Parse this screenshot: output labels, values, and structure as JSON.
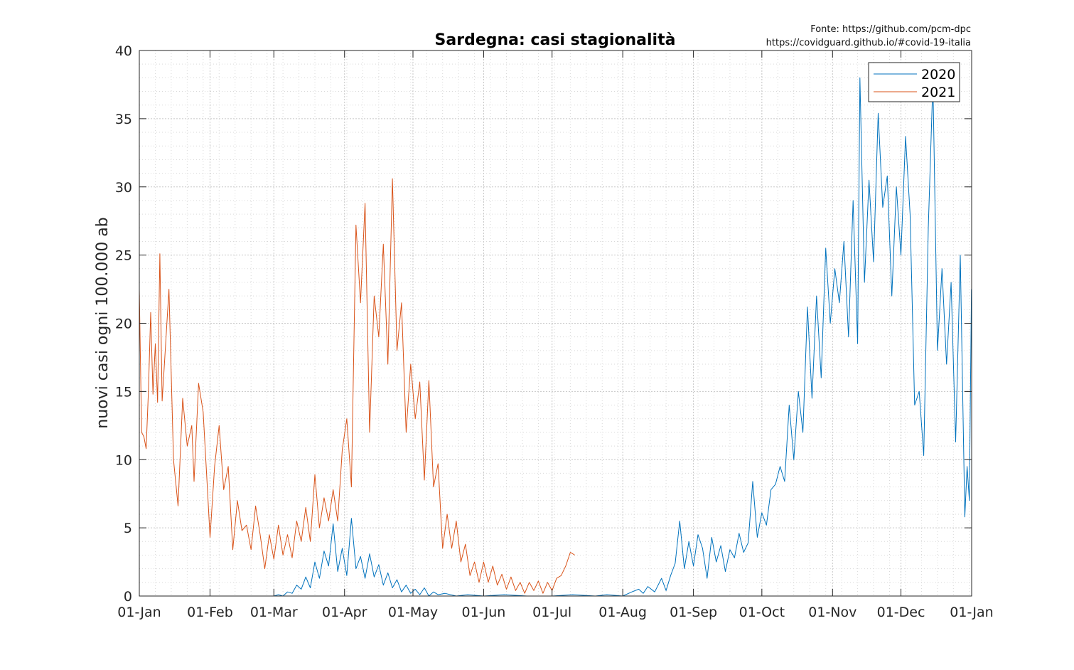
{
  "source": {
    "line1": "Fonte: https://github.com/pcm-dpc",
    "line2": "https://covidguard.github.io/#covid-19-italia"
  },
  "chart_data": {
    "type": "line",
    "title": "Sardegna: casi stagionalità",
    "xlabel": "",
    "ylabel": "nuovi casi ogni 100.000 ab",
    "ylim": [
      0,
      40
    ],
    "yticks": [
      0,
      5,
      10,
      15,
      20,
      25,
      30,
      35,
      40
    ],
    "x_domain": [
      "01-Jan",
      "01-Jan (next year)"
    ],
    "xtick_labels": [
      "01-Jan",
      "01-Feb",
      "01-Mar",
      "01-Apr",
      "01-May",
      "01-Jun",
      "01-Jul",
      "01-Aug",
      "01-Sep",
      "01-Oct",
      "01-Nov",
      "01-Dec",
      "01-Jan"
    ],
    "grid": true,
    "minor_grid": true,
    "legend_position": "top-right",
    "colors": {
      "2020": "#0072BD",
      "2021": "#D95319"
    },
    "series": [
      {
        "name": "2020",
        "color": "#0072BD",
        "x_format": "MM-DD",
        "points": [
          [
            "03-01",
            0
          ],
          [
            "03-03",
            0.1
          ],
          [
            "03-05",
            0
          ],
          [
            "03-07",
            0.3
          ],
          [
            "03-09",
            0.2
          ],
          [
            "03-11",
            0.8
          ],
          [
            "03-13",
            0.5
          ],
          [
            "03-15",
            1.4
          ],
          [
            "03-17",
            0.6
          ],
          [
            "03-19",
            2.5
          ],
          [
            "03-21",
            1.3
          ],
          [
            "03-23",
            3.3
          ],
          [
            "03-25",
            2.2
          ],
          [
            "03-27",
            5.3
          ],
          [
            "03-29",
            1.8
          ],
          [
            "03-31",
            3.5
          ],
          [
            "04-02",
            1.5
          ],
          [
            "04-04",
            5.7
          ],
          [
            "04-06",
            2.0
          ],
          [
            "04-08",
            2.9
          ],
          [
            "04-10",
            1.3
          ],
          [
            "04-12",
            3.1
          ],
          [
            "04-14",
            1.4
          ],
          [
            "04-16",
            2.3
          ],
          [
            "04-18",
            0.8
          ],
          [
            "04-20",
            1.7
          ],
          [
            "04-22",
            0.6
          ],
          [
            "04-24",
            1.2
          ],
          [
            "04-26",
            0.3
          ],
          [
            "04-28",
            0.8
          ],
          [
            "04-30",
            0.2
          ],
          [
            "05-02",
            0.5
          ],
          [
            "05-04",
            0.1
          ],
          [
            "05-06",
            0.6
          ],
          [
            "05-08",
            0
          ],
          [
            "05-10",
            0.3
          ],
          [
            "05-12",
            0.1
          ],
          [
            "05-15",
            0.2
          ],
          [
            "05-20",
            0
          ],
          [
            "05-25",
            0.1
          ],
          [
            "06-01",
            0
          ],
          [
            "06-10",
            0.1
          ],
          [
            "06-20",
            0
          ],
          [
            "07-01",
            0
          ],
          [
            "07-10",
            0.1
          ],
          [
            "07-20",
            0
          ],
          [
            "07-25",
            0.1
          ],
          [
            "08-01",
            0
          ],
          [
            "08-05",
            0.3
          ],
          [
            "08-08",
            0.5
          ],
          [
            "08-10",
            0.2
          ],
          [
            "08-12",
            0.7
          ],
          [
            "08-15",
            0.3
          ],
          [
            "08-18",
            1.3
          ],
          [
            "08-20",
            0.4
          ],
          [
            "08-22",
            1.5
          ],
          [
            "08-24",
            2.4
          ],
          [
            "08-26",
            5.5
          ],
          [
            "08-28",
            2.0
          ],
          [
            "08-30",
            4.0
          ],
          [
            "09-01",
            2.2
          ],
          [
            "09-03",
            4.5
          ],
          [
            "09-05",
            3.5
          ],
          [
            "09-07",
            1.3
          ],
          [
            "09-09",
            4.3
          ],
          [
            "09-11",
            2.5
          ],
          [
            "09-13",
            3.7
          ],
          [
            "09-15",
            1.8
          ],
          [
            "09-17",
            3.4
          ],
          [
            "09-19",
            2.8
          ],
          [
            "09-21",
            4.6
          ],
          [
            "09-23",
            3.2
          ],
          [
            "09-25",
            3.9
          ],
          [
            "09-27",
            8.4
          ],
          [
            "09-29",
            4.3
          ],
          [
            "10-01",
            6.1
          ],
          [
            "10-03",
            5.2
          ],
          [
            "10-05",
            7.8
          ],
          [
            "10-07",
            8.2
          ],
          [
            "10-09",
            9.5
          ],
          [
            "10-11",
            8.4
          ],
          [
            "10-13",
            14.0
          ],
          [
            "10-15",
            10.0
          ],
          [
            "10-17",
            15.0
          ],
          [
            "10-19",
            12.0
          ],
          [
            "10-21",
            21.2
          ],
          [
            "10-23",
            14.5
          ],
          [
            "10-25",
            22.0
          ],
          [
            "10-27",
            16.0
          ],
          [
            "10-29",
            25.5
          ],
          [
            "10-31",
            20.0
          ],
          [
            "11-02",
            24.0
          ],
          [
            "11-04",
            21.5
          ],
          [
            "11-06",
            26.0
          ],
          [
            "11-08",
            19.0
          ],
          [
            "11-10",
            29.0
          ],
          [
            "11-12",
            18.5
          ],
          [
            "11-13",
            38.0
          ],
          [
            "11-15",
            23.0
          ],
          [
            "11-17",
            30.5
          ],
          [
            "11-19",
            24.5
          ],
          [
            "11-21",
            35.4
          ],
          [
            "11-23",
            28.5
          ],
          [
            "11-25",
            30.8
          ],
          [
            "11-27",
            22.0
          ],
          [
            "11-29",
            30.0
          ],
          [
            "12-01",
            25.0
          ],
          [
            "12-03",
            33.7
          ],
          [
            "12-05",
            28.0
          ],
          [
            "12-07",
            14.0
          ],
          [
            "12-09",
            15.0
          ],
          [
            "12-11",
            10.3
          ],
          [
            "12-13",
            27.0
          ],
          [
            "12-15",
            37.8
          ],
          [
            "12-17",
            18.0
          ],
          [
            "12-19",
            24.0
          ],
          [
            "12-21",
            17.0
          ],
          [
            "12-23",
            23.0
          ],
          [
            "12-25",
            11.3
          ],
          [
            "12-27",
            25.0
          ],
          [
            "12-29",
            5.8
          ],
          [
            "12-30",
            9.5
          ],
          [
            "12-31",
            7.0
          ],
          [
            "12-31b",
            22.5
          ]
        ]
      },
      {
        "name": "2021",
        "color": "#D95319",
        "x_format": "MM-DD",
        "points": [
          [
            "01-01",
            22.5
          ],
          [
            "01-02",
            12.0
          ],
          [
            "01-03",
            11.7
          ],
          [
            "01-04",
            10.8
          ],
          [
            "01-05",
            15.0
          ],
          [
            "01-06",
            20.8
          ],
          [
            "01-07",
            14.8
          ],
          [
            "01-08",
            18.5
          ],
          [
            "01-09",
            14.2
          ],
          [
            "01-10",
            25.1
          ],
          [
            "01-11",
            14.3
          ],
          [
            "01-12",
            17.0
          ],
          [
            "01-14",
            22.5
          ],
          [
            "01-16",
            10.0
          ],
          [
            "01-18",
            6.6
          ],
          [
            "01-20",
            14.5
          ],
          [
            "01-22",
            11.0
          ],
          [
            "01-24",
            12.5
          ],
          [
            "01-25",
            8.4
          ],
          [
            "01-27",
            15.6
          ],
          [
            "01-29",
            13.5
          ],
          [
            "01-31",
            7.5
          ],
          [
            "02-01",
            4.3
          ],
          [
            "02-03",
            9.5
          ],
          [
            "02-05",
            12.5
          ],
          [
            "02-07",
            7.8
          ],
          [
            "02-09",
            9.5
          ],
          [
            "02-11",
            3.4
          ],
          [
            "02-13",
            7.0
          ],
          [
            "02-15",
            4.8
          ],
          [
            "02-17",
            5.2
          ],
          [
            "02-19",
            3.4
          ],
          [
            "02-21",
            6.6
          ],
          [
            "02-23",
            4.5
          ],
          [
            "02-25",
            2.0
          ],
          [
            "02-27",
            4.5
          ],
          [
            "03-01",
            2.7
          ],
          [
            "03-03",
            5.2
          ],
          [
            "03-05",
            3.0
          ],
          [
            "03-07",
            4.5
          ],
          [
            "03-09",
            2.8
          ],
          [
            "03-11",
            5.5
          ],
          [
            "03-13",
            4.0
          ],
          [
            "03-15",
            6.5
          ],
          [
            "03-17",
            4.0
          ],
          [
            "03-19",
            8.9
          ],
          [
            "03-21",
            5.0
          ],
          [
            "03-23",
            7.2
          ],
          [
            "03-25",
            5.5
          ],
          [
            "03-27",
            7.8
          ],
          [
            "03-29",
            5.5
          ],
          [
            "03-31",
            10.7
          ],
          [
            "04-02",
            13.0
          ],
          [
            "04-04",
            8.0
          ],
          [
            "04-06",
            27.2
          ],
          [
            "04-08",
            21.5
          ],
          [
            "04-10",
            28.8
          ],
          [
            "04-12",
            12.0
          ],
          [
            "04-14",
            22.0
          ],
          [
            "04-16",
            19.0
          ],
          [
            "04-18",
            25.8
          ],
          [
            "04-20",
            17.0
          ],
          [
            "04-22",
            30.6
          ],
          [
            "04-24",
            18.0
          ],
          [
            "04-26",
            21.5
          ],
          [
            "04-28",
            12.0
          ],
          [
            "04-30",
            17.0
          ],
          [
            "05-02",
            13.0
          ],
          [
            "05-04",
            15.7
          ],
          [
            "05-06",
            8.5
          ],
          [
            "05-08",
            15.8
          ],
          [
            "05-10",
            8.0
          ],
          [
            "05-12",
            9.7
          ],
          [
            "05-14",
            3.5
          ],
          [
            "05-16",
            6.0
          ],
          [
            "05-18",
            3.5
          ],
          [
            "05-20",
            5.5
          ],
          [
            "05-22",
            2.5
          ],
          [
            "05-24",
            3.8
          ],
          [
            "05-26",
            1.5
          ],
          [
            "05-28",
            2.5
          ],
          [
            "05-30",
            1.0
          ],
          [
            "06-01",
            2.5
          ],
          [
            "06-03",
            1.0
          ],
          [
            "06-05",
            2.2
          ],
          [
            "06-07",
            0.8
          ],
          [
            "06-09",
            1.6
          ],
          [
            "06-11",
            0.5
          ],
          [
            "06-13",
            1.4
          ],
          [
            "06-15",
            0.4
          ],
          [
            "06-17",
            1.0
          ],
          [
            "06-19",
            0.2
          ],
          [
            "06-21",
            1.0
          ],
          [
            "06-23",
            0.4
          ],
          [
            "06-25",
            1.1
          ],
          [
            "06-27",
            0.2
          ],
          [
            "06-29",
            1.0
          ],
          [
            "07-01",
            0.4
          ],
          [
            "07-03",
            1.3
          ],
          [
            "07-05",
            1.5
          ],
          [
            "07-07",
            2.2
          ],
          [
            "07-09",
            3.2
          ],
          [
            "07-11",
            3.0
          ]
        ]
      }
    ]
  }
}
